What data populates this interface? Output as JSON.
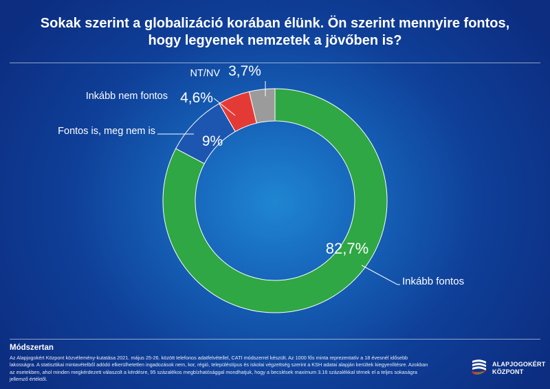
{
  "title_line1": "Sokak szerint a globalizáció korában élünk. Ön szerint mennyire fontos,",
  "title_line2": "hogy legyenek nemzetek a jövőben is?",
  "chart_data": {
    "type": "pie",
    "subtype": "donut",
    "categories": [
      "Inkább fontos",
      "Fontos is, meg nem is",
      "Inkább nem fontos",
      "NT/NV"
    ],
    "values": [
      82.7,
      9,
      4.6,
      3.7
    ],
    "value_labels": [
      "82,7%",
      "9%",
      "4,6%",
      "3,7%"
    ],
    "colors": [
      "#2fa744",
      "#1c56b0",
      "#e43a36",
      "#9b9b9b"
    ],
    "legend": "none"
  },
  "method": {
    "heading": "Módszertan",
    "text": "Az Alapjogokért Központ közvélemény-kutatása 2021. május 25-26. között telefonos adatfelvétellel, CATI módszerrel készült. Az 1000 fős minta reprezentatív a 18 évesnél idősebb lakosságra. A statisztikai mintavételből adódó elkerülhetetlen ingadozások nem, kor, régió, településtípus és iskolai végzettség szerint a KSH adatai alapján kerültek kiegyenlítésre. Azokban az esetekben, ahol minden megkérdezett válaszolt a kérdésre, 95 százalékos megbízhatósággal mondhatjuk, hogy a becslések maximum 3.16 százalékkal térnek el a teljes sokaságra jellemző értéktől."
  },
  "logo": {
    "line1": "ALAPJOGOKÉRT",
    "line2": "KÖZPONT",
    "icon": "flag-swoosh-icon"
  }
}
